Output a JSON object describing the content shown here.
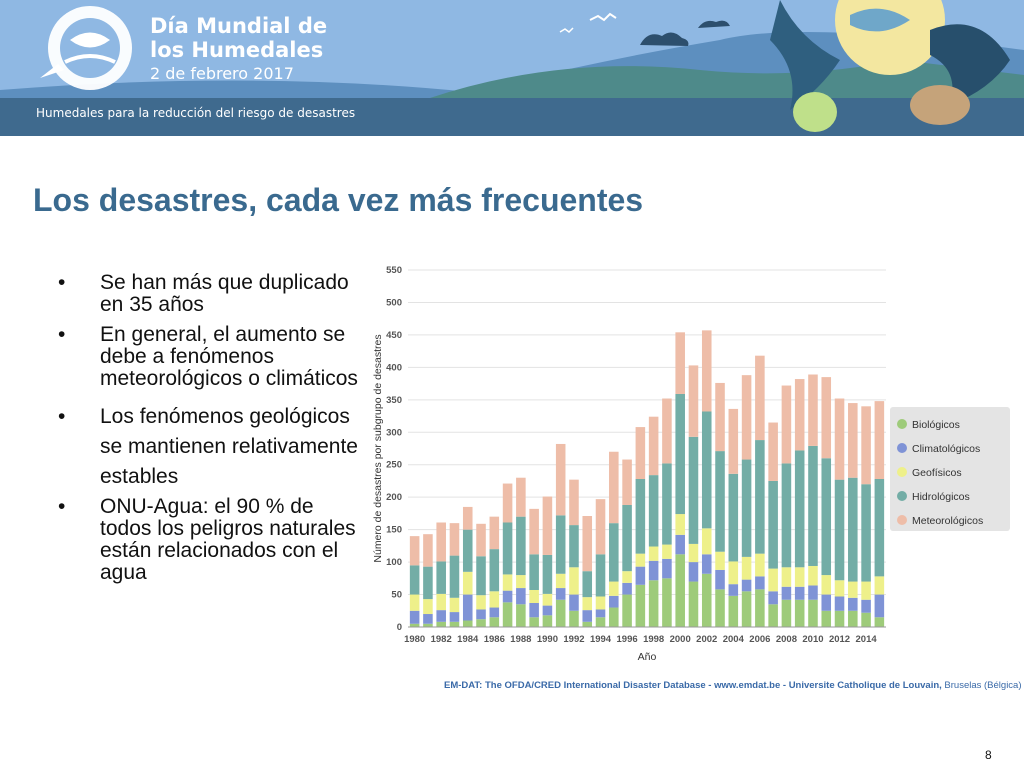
{
  "banner": {
    "title_line1": "Día Mundial de",
    "title_line2": "los Humedales",
    "date": "2 de febrero 2017",
    "subtitle": "Humedales para la reducción del riesgo de desastres"
  },
  "slide": {
    "title": "Los desastres, cada vez más frecuentes",
    "page_number": "8"
  },
  "bullets": [
    "Se han más que duplicado en 35 años",
    "En general, el aumento se debe a fenómenos meteorológicos o climáticos",
    "Los fenómenos geológicos se mantienen relativamente estables",
    "ONU-Agua: el 90 % de todos los peligros naturales están relacionados con el agua"
  ],
  "source": {
    "main": "EM-DAT: The OFDA/CRED International Disaster Database - www.emdat.be - Universite Catholique de Louvain,",
    "place": " Bruselas (Bélgica)"
  },
  "colors": {
    "banner_sky": "#8fb8e3",
    "banner_band": "#3f6a8e",
    "title": "#3a6a8f",
    "Biológicos": "#9ecb7a",
    "Climatológicos": "#7f93d6",
    "Geofísicos": "#eef08a",
    "Hidrológicos": "#73ada6",
    "Meteorológicos": "#eebda8"
  },
  "chart_data": {
    "type": "bar",
    "stacked": true,
    "xlabel": "Año",
    "ylabel": "Número de desastres por subgrupo de desastres",
    "ylim": [
      0,
      550
    ],
    "yticks": [
      0,
      50,
      100,
      150,
      200,
      250,
      300,
      350,
      400,
      450,
      500,
      550
    ],
    "grid": true,
    "legend_position": "right",
    "x": [
      1980,
      1981,
      1982,
      1983,
      1984,
      1985,
      1986,
      1987,
      1988,
      1989,
      1990,
      1991,
      1992,
      1993,
      1994,
      1995,
      1996,
      1997,
      1998,
      1999,
      2000,
      2001,
      2002,
      2003,
      2004,
      2005,
      2006,
      2007,
      2008,
      2009,
      2010,
      2011,
      2012,
      2013,
      2014,
      2015
    ],
    "xtick_labels": [
      "1980",
      "1982",
      "1984",
      "1986",
      "1988",
      "1990",
      "1992",
      "1994",
      "1996",
      "1998",
      "2000",
      "2002",
      "2004",
      "2006",
      "2008",
      "2010",
      "2012",
      "2014"
    ],
    "series": [
      {
        "name": "Biológicos",
        "values": [
          5,
          5,
          8,
          8,
          10,
          12,
          15,
          38,
          35,
          15,
          18,
          42,
          25,
          8,
          15,
          30,
          50,
          65,
          72,
          75,
          112,
          70,
          82,
          58,
          48,
          55,
          58,
          35,
          42,
          42,
          42,
          25,
          25,
          25,
          22,
          15
        ]
      },
      {
        "name": "Climatológicos",
        "values": [
          20,
          15,
          18,
          15,
          40,
          15,
          15,
          18,
          25,
          22,
          15,
          18,
          25,
          18,
          12,
          18,
          18,
          28,
          30,
          30,
          30,
          30,
          30,
          30,
          18,
          18,
          20,
          20,
          20,
          20,
          22,
          25,
          22,
          20,
          20,
          35
        ]
      },
      {
        "name": "Geofísicos",
        "values": [
          25,
          23,
          25,
          22,
          35,
          22,
          25,
          25,
          20,
          20,
          18,
          22,
          42,
          20,
          20,
          22,
          18,
          20,
          22,
          22,
          32,
          28,
          40,
          28,
          35,
          35,
          35,
          35,
          30,
          30,
          30,
          30,
          25,
          25,
          28,
          28
        ]
      },
      {
        "name": "Hidrológicos",
        "values": [
          45,
          50,
          50,
          65,
          65,
          60,
          65,
          80,
          90,
          55,
          60,
          90,
          65,
          40,
          65,
          90,
          102,
          115,
          110,
          125,
          185,
          165,
          180,
          155,
          135,
          150,
          175,
          135,
          160,
          180,
          185,
          180,
          155,
          160,
          150,
          150
        ]
      },
      {
        "name": "Meteorológicos",
        "values": [
          45,
          50,
          60,
          50,
          35,
          50,
          50,
          60,
          60,
          70,
          90,
          110,
          70,
          85,
          85,
          110,
          70,
          80,
          90,
          100,
          95,
          110,
          125,
          105,
          100,
          130,
          130,
          90,
          120,
          110,
          110,
          125,
          125,
          115,
          120,
          120
        ]
      }
    ]
  }
}
